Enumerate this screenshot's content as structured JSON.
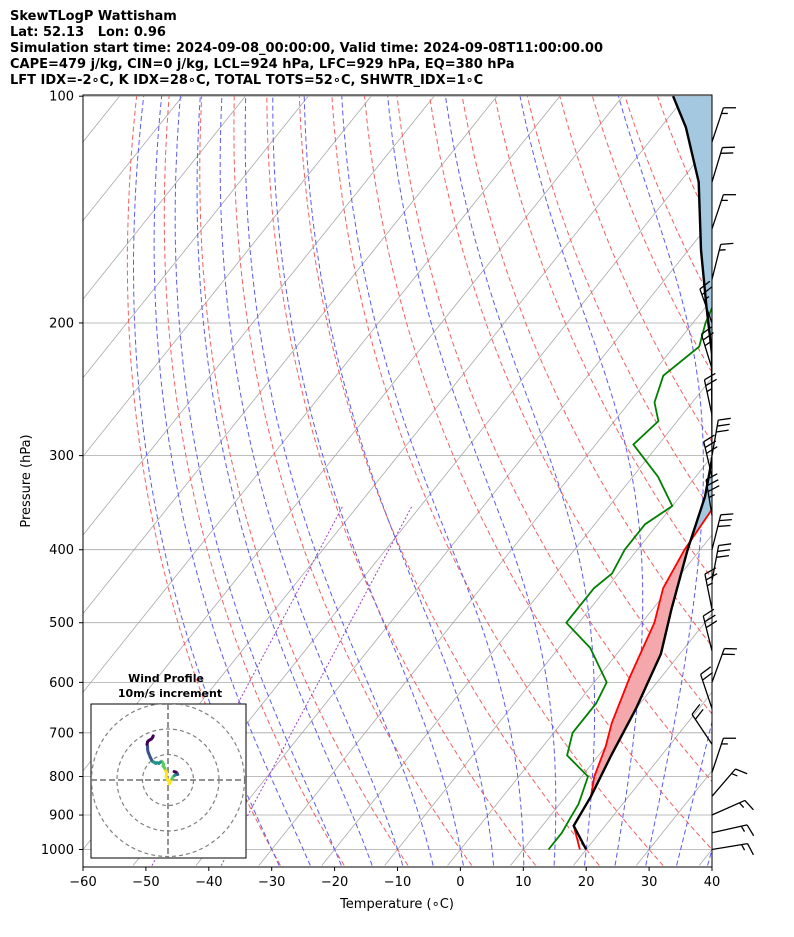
{
  "header": {
    "line1": "SkewTLogP Wattisham",
    "line2": "Lat: 52.13   Lon: 0.96",
    "line3": "Simulation start time: 2024-09-08_00:00:00, Valid time: 2024-09-08T11:00:00.00",
    "line4": "CAPE=479 j/kg, CIN=0 j/kg, LCL=924 hPa, LFC=929 hPa, EQ=380 hPa",
    "line5": "LFT IDX=-2∘C, K IDX=28∘C, TOTAL TOTS=52∘C, SHWTR_IDX=1∘C"
  },
  "chart_data": [
    {
      "type": "line",
      "subtype": "skew-T log-P diagram",
      "xlabel": "Temperature (∘C)",
      "ylabel": "Pressure (hPa)",
      "x_ticks": [
        "−60",
        "−50",
        "−40",
        "−30",
        "−20",
        "−10",
        "0",
        "10",
        "20",
        "30",
        "40"
      ],
      "y_ticks": [
        "100",
        "200",
        "300",
        "400",
        "500",
        "600",
        "700",
        "800",
        "900",
        "1000"
      ],
      "xlim": [
        -60,
        40
      ],
      "ylim": [
        1050,
        100
      ],
      "y_scale": "log",
      "grid": true,
      "series": [
        {
          "role": "temperature",
          "color": "#ff0000",
          "points": [
            [
              19,
              1000
            ],
            [
              15,
              930
            ],
            [
              14,
              850
            ],
            [
              12,
              800
            ],
            [
              10,
              730
            ],
            [
              8,
              680
            ],
            [
              5,
              590
            ],
            [
              2,
              500
            ],
            [
              -1,
              450
            ],
            [
              -2.5,
              400
            ],
            [
              -3.5,
              340
            ],
            [
              -3,
              310
            ],
            [
              -0.5,
              290
            ],
            [
              2,
              260
            ],
            [
              4,
              240
            ],
            [
              5,
              210
            ],
            [
              5.5,
              190
            ],
            [
              6,
              160
            ],
            [
              6,
              140
            ],
            [
              6,
              125
            ],
            [
              5,
              115
            ],
            [
              3,
              100
            ]
          ]
        },
        {
          "role": "dewpoint",
          "color": "#008000",
          "points": [
            [
              14,
              1000
            ],
            [
              14,
              950
            ],
            [
              13.5,
              910
            ],
            [
              13,
              870
            ],
            [
              11,
              800
            ],
            [
              5,
              750
            ],
            [
              3,
              700
            ],
            [
              3,
              640
            ],
            [
              2,
              600
            ],
            [
              -5,
              540
            ],
            [
              -12,
              500
            ],
            [
              -12,
              450
            ],
            [
              -11,
              430
            ],
            [
              -12,
              400
            ],
            [
              -12,
              370
            ],
            [
              -10,
              350
            ],
            [
              -16,
              320
            ],
            [
              -24,
              290
            ],
            [
              -23,
              270
            ],
            [
              -26,
              255
            ],
            [
              -28,
              235
            ],
            [
              -26,
              215
            ],
            [
              -28,
              200
            ],
            [
              -30,
              180
            ],
            [
              -29,
              160
            ],
            [
              -26,
              145
            ],
            [
              -25,
              130
            ],
            [
              -23,
              115
            ],
            [
              -21,
              100
            ]
          ]
        },
        {
          "role": "parcel",
          "color": "#000000",
          "points": [
            [
              20,
              1000
            ],
            [
              15,
              930
            ],
            [
              14,
              850
            ],
            [
              12,
              750
            ],
            [
              10,
              650
            ],
            [
              7,
              550
            ],
            [
              3,
              480
            ],
            [
              -2,
              400
            ],
            [
              -6,
              340
            ],
            [
              -10,
              300
            ],
            [
              -16,
              260
            ],
            [
              -23,
              220
            ],
            [
              -30,
              190
            ],
            [
              -38,
              160
            ],
            [
              -47,
              130
            ],
            [
              -56,
              110
            ],
            [
              -62,
              100
            ]
          ]
        }
      ],
      "shading": [
        {
          "role": "CAPE",
          "color": "#f4a8ac",
          "p_range": [
            929,
            380
          ]
        },
        {
          "role": "upper region",
          "color": "#a3c8e0",
          "p_range": [
            380,
            100
          ]
        }
      ],
      "wind_barbs": [
        {
          "p": 1000,
          "u": -9,
          "v": 1.5
        },
        {
          "p": 950,
          "u": -9,
          "v": 2
        },
        {
          "p": 900,
          "u": -9,
          "v": 4
        },
        {
          "p": 850,
          "u": -6,
          "v": 7
        },
        {
          "p": 790,
          "u": -3,
          "v": 9
        },
        {
          "p": 725,
          "u": 6,
          "v": 9
        },
        {
          "p": 650,
          "u": 4,
          "v": 12
        },
        {
          "p": 600,
          "u": -4,
          "v": 11
        },
        {
          "p": 545,
          "u": 4,
          "v": 16
        },
        {
          "p": 480,
          "u": 3,
          "v": 15
        },
        {
          "p": 440,
          "u": -3,
          "v": 16
        },
        {
          "p": 400,
          "u": -4,
          "v": 16
        },
        {
          "p": 360,
          "u": 3,
          "v": 18
        },
        {
          "p": 320,
          "u": 4,
          "v": 17
        },
        {
          "p": 300,
          "u": -3,
          "v": 17
        },
        {
          "p": 265,
          "u": 3,
          "v": 14
        },
        {
          "p": 230,
          "u": 4,
          "v": 13
        },
        {
          "p": 200,
          "u": 5,
          "v": 14
        },
        {
          "p": 175,
          "u": -2,
          "v": 8
        },
        {
          "p": 150,
          "u": -3,
          "v": 9
        },
        {
          "p": 130,
          "u": -3,
          "v": 10
        },
        {
          "p": 115,
          "u": -3,
          "v": 9
        }
      ]
    },
    {
      "type": "line",
      "subtype": "hodograph",
      "title": "Wind Profile",
      "subtitle": "10m/s increment",
      "rings": [
        10,
        20,
        30
      ],
      "color_scale": [
        "#fde725",
        "#5ec962",
        "#21918c",
        "#3b528b",
        "#440154"
      ],
      "points": [
        [
          -9,
          1.5
        ],
        [
          -9,
          2
        ],
        [
          -9,
          4
        ],
        [
          -6,
          7
        ],
        [
          -3,
          9
        ],
        [
          6,
          9
        ],
        [
          4,
          12
        ],
        [
          -4,
          11
        ],
        [
          4,
          16
        ],
        [
          3,
          15
        ],
        [
          -3,
          16
        ],
        [
          -4,
          16
        ],
        [
          3,
          18
        ],
        [
          4,
          17
        ],
        [
          -3,
          17
        ],
        [
          3,
          14
        ],
        [
          4,
          13
        ],
        [
          5,
          14
        ]
      ],
      "hodo_trace": [
        [
          0.5,
          -1.5
        ],
        [
          0.3,
          -0.5
        ],
        [
          -0.5,
          0.5
        ],
        [
          -0.8,
          1.5
        ],
        [
          -0.5,
          2.5
        ],
        [
          -0.7,
          3.2
        ],
        [
          -1,
          3.8
        ],
        [
          -1.2,
          4.5
        ],
        [
          -1.5,
          5
        ],
        [
          -1.9,
          5.5
        ],
        [
          -1.7,
          6.2
        ],
        [
          -2.2,
          7
        ],
        [
          -2.5,
          7.3
        ],
        [
          -3,
          7
        ],
        [
          -3.6,
          6.5
        ],
        [
          -4.2,
          6.8
        ],
        [
          -4.8,
          6.5
        ],
        [
          -5.3,
          6.9
        ],
        [
          -6,
          7.2
        ],
        [
          -6.5,
          8
        ],
        [
          -7,
          9
        ],
        [
          -7.4,
          10
        ],
        [
          -7.8,
          11
        ],
        [
          -8,
          12
        ],
        [
          -8,
          13
        ],
        [
          -8.2,
          14
        ],
        [
          -8,
          15
        ],
        [
          -7.5,
          15.5
        ],
        [
          -7,
          15.8
        ],
        [
          -6.4,
          16.2
        ],
        [
          -6,
          16.8
        ],
        [
          -5.8,
          17.3
        ]
      ],
      "hodo_trace_b": [
        [
          0.5,
          -1.5
        ],
        [
          1,
          -0.5
        ],
        [
          1.5,
          0.4
        ],
        [
          2,
          1.2
        ],
        [
          2.6,
          1.8
        ],
        [
          3.2,
          2.1
        ],
        [
          3.8,
          2.2
        ],
        [
          3.5,
          2.8
        ],
        [
          3,
          3.1
        ],
        [
          2.4,
          3.3
        ]
      ]
    }
  ]
}
